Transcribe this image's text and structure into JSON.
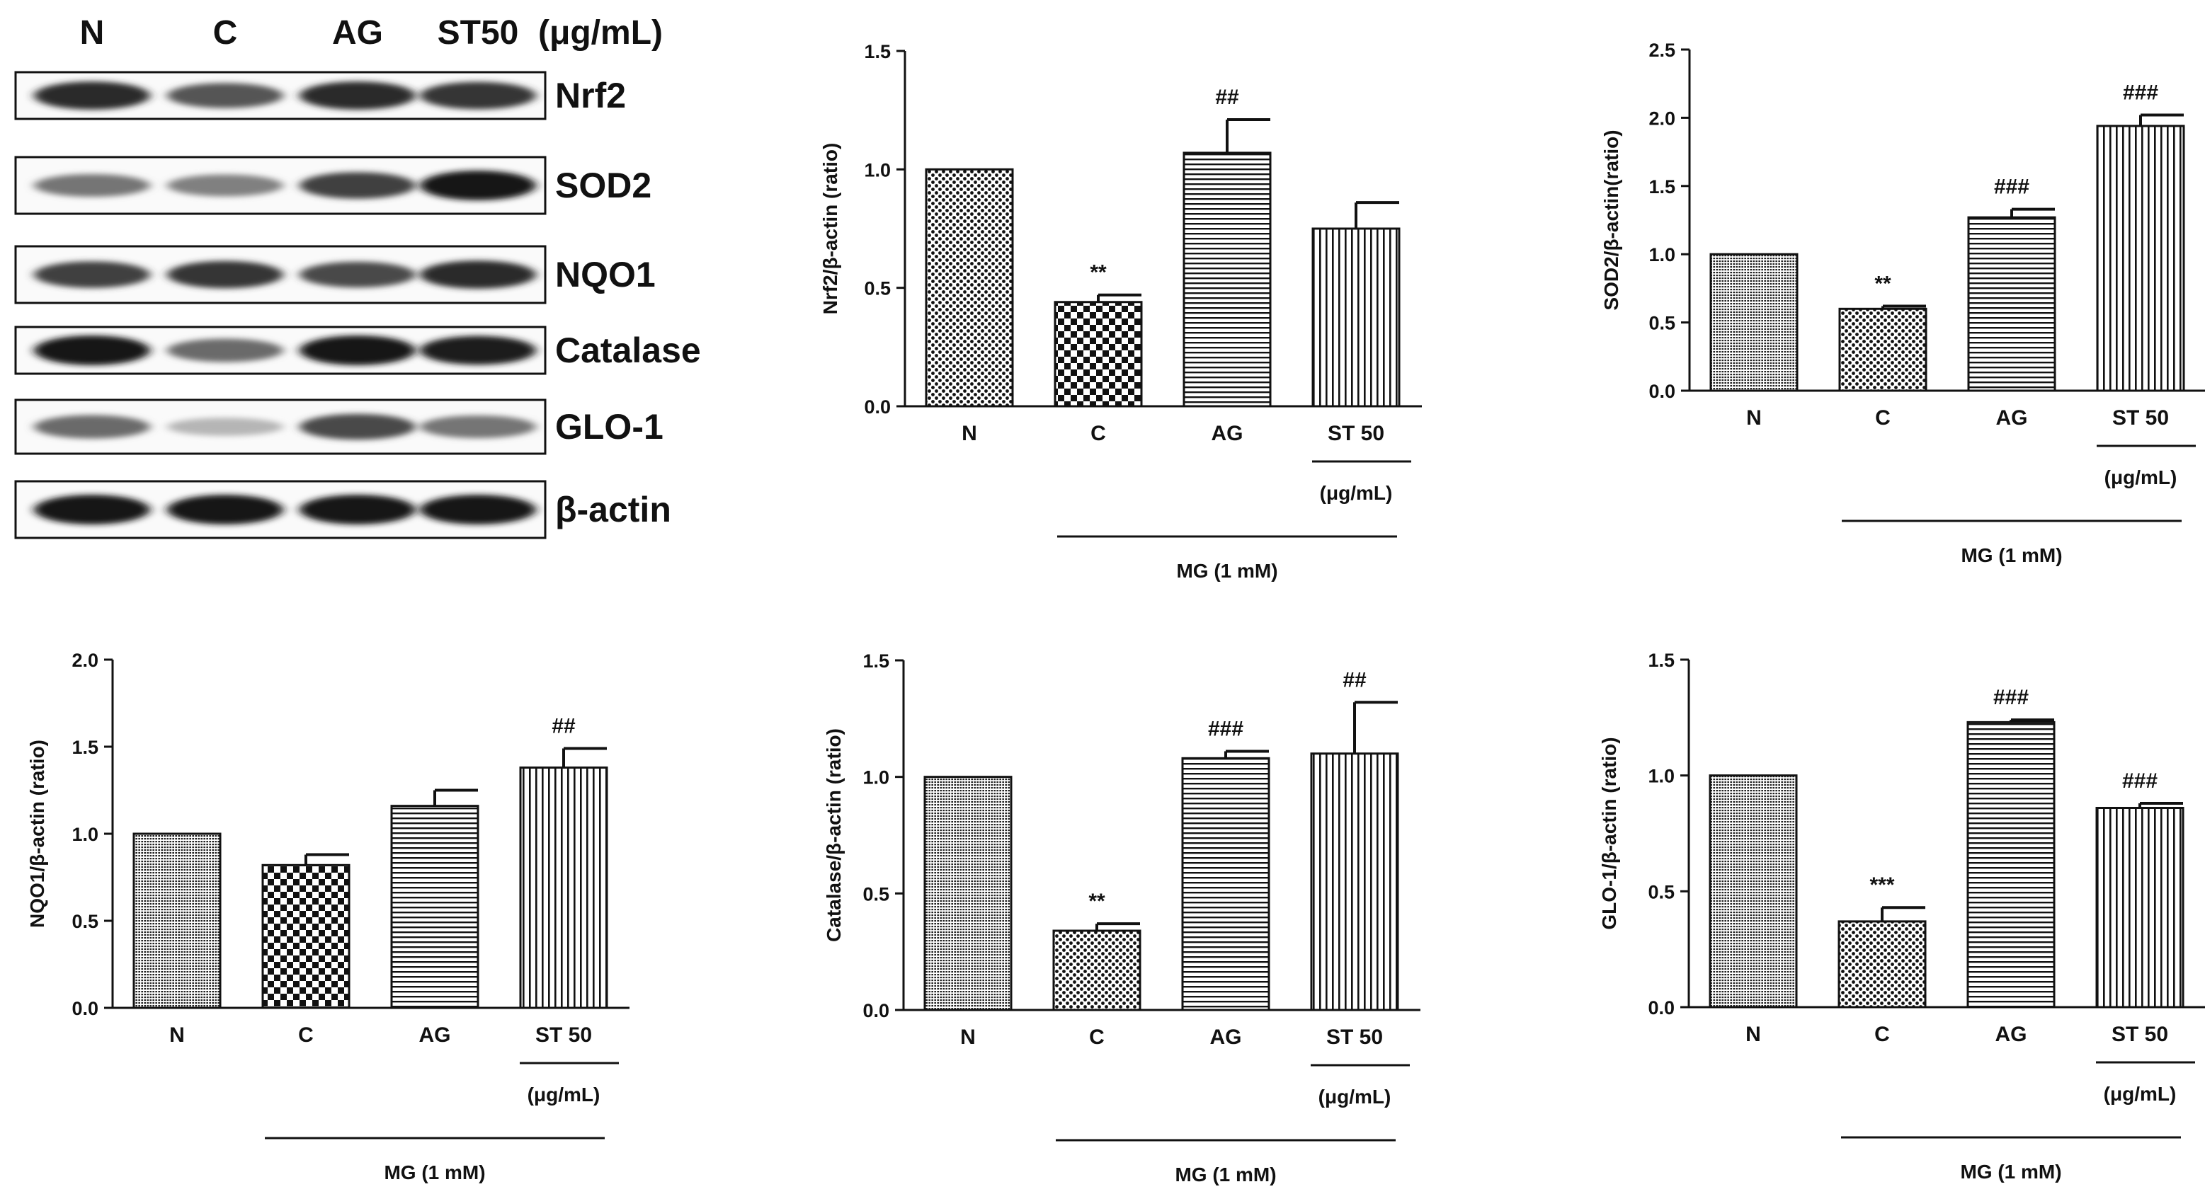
{
  "blot": {
    "lanes": [
      "N",
      "C",
      "AG",
      "ST50"
    ],
    "unit": "(μg/mL)",
    "bands": [
      {
        "name": "Nrf2",
        "intensity": [
          0.9,
          0.7,
          0.9,
          0.85
        ]
      },
      {
        "name": "SOD2",
        "intensity": [
          0.55,
          0.5,
          0.8,
          1.0
        ]
      },
      {
        "name": "NQO1",
        "intensity": [
          0.8,
          0.85,
          0.75,
          0.9
        ]
      },
      {
        "name": "Catalase",
        "intensity": [
          1.0,
          0.6,
          1.0,
          0.95
        ]
      },
      {
        "name": "GLO-1",
        "intensity": [
          0.6,
          0.25,
          0.75,
          0.55
        ]
      },
      {
        "name": "β-actin",
        "intensity": [
          1.0,
          1.0,
          1.0,
          1.0
        ]
      }
    ]
  },
  "chart_data": [
    {
      "type": "bar",
      "id": "nrf2",
      "ylabel": "Nrf2/β-actin (ratio)",
      "categories": [
        "N",
        "C",
        "AG",
        "ST 50"
      ],
      "values": [
        1.0,
        0.44,
        1.07,
        0.75
      ],
      "errors": [
        0,
        0.03,
        0.14,
        0.11
      ],
      "ylim": [
        0,
        1.5
      ],
      "yticks": [
        "0.0",
        "0.5",
        "1.0",
        "1.5"
      ],
      "sig": [
        "",
        "**",
        "##",
        ""
      ],
      "patterns": [
        "pat-dots",
        "pat-check",
        "pat-hlines",
        "pat-vlines"
      ],
      "unit": "(μg/mL)",
      "treatment": "MG (1 mM)"
    },
    {
      "type": "bar",
      "id": "sod2",
      "ylabel": "SOD2/β-actin(ratio)",
      "categories": [
        "N",
        "C",
        "AG",
        "ST 50"
      ],
      "values": [
        1.0,
        0.6,
        1.27,
        1.94
      ],
      "errors": [
        0,
        0.02,
        0.06,
        0.08
      ],
      "ylim": [
        0,
        2.5
      ],
      "yticks": [
        "0.0",
        "0.5",
        "1.0",
        "1.5",
        "2.0",
        "2.5"
      ],
      "sig": [
        "",
        "**",
        "###",
        "###"
      ],
      "patterns": [
        "pat-hdots",
        "pat-dots",
        "pat-hlines",
        "pat-vlines"
      ],
      "unit": "(μg/mL)",
      "treatment": "MG (1 mM)"
    },
    {
      "type": "bar",
      "id": "nqo1",
      "ylabel": "NQO1/β-actin (ratio)",
      "categories": [
        "N",
        "C",
        "AG",
        "ST 50"
      ],
      "values": [
        1.0,
        0.82,
        1.16,
        1.38
      ],
      "errors": [
        0,
        0.06,
        0.09,
        0.11
      ],
      "ylim": [
        0,
        2.0
      ],
      "yticks": [
        "0.0",
        "0.5",
        "1.0",
        "1.5",
        "2.0"
      ],
      "sig": [
        "",
        "",
        "",
        "##"
      ],
      "patterns": [
        "pat-hdots",
        "pat-check",
        "pat-hlines",
        "pat-vlines"
      ],
      "unit": "(μg/mL)",
      "treatment": "MG (1 mM)"
    },
    {
      "type": "bar",
      "id": "catalase",
      "ylabel": "Catalase/β-actin (ratio)",
      "categories": [
        "N",
        "C",
        "AG",
        "ST 50"
      ],
      "values": [
        1.0,
        0.34,
        1.08,
        1.1
      ],
      "errors": [
        0,
        0.03,
        0.03,
        0.22
      ],
      "ylim": [
        0,
        1.5
      ],
      "yticks": [
        "0.0",
        "0.5",
        "1.0",
        "1.5"
      ],
      "sig": [
        "",
        "**",
        "###",
        "##"
      ],
      "patterns": [
        "pat-hdots",
        "pat-dots",
        "pat-hlines",
        "pat-vlines"
      ],
      "unit": "(μg/mL)",
      "treatment": "MG (1 mM)"
    },
    {
      "type": "bar",
      "id": "glo1",
      "ylabel": "GLO-1/β-actin (ratio)",
      "categories": [
        "N",
        "C",
        "AG",
        "ST 50"
      ],
      "values": [
        1.0,
        0.37,
        1.23,
        0.86
      ],
      "errors": [
        0,
        0.06,
        0.01,
        0.02
      ],
      "ylim": [
        0,
        1.5
      ],
      "yticks": [
        "0.0",
        "0.5",
        "1.0",
        "1.5"
      ],
      "sig": [
        "",
        "***",
        "###",
        "###"
      ],
      "patterns": [
        "pat-hdots",
        "pat-dots",
        "pat-hlines",
        "pat-vlines"
      ],
      "unit": "(μg/mL)",
      "treatment": "MG (1 mM)"
    }
  ]
}
